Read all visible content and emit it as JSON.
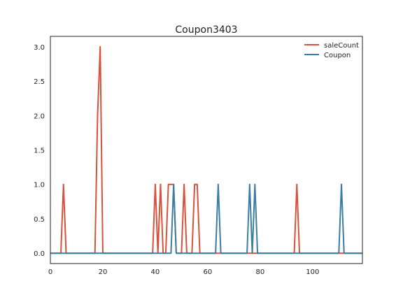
{
  "chart_data": {
    "type": "line",
    "title": "Coupon3403",
    "xlabel": "",
    "ylabel": "",
    "xlim": [
      0,
      119
    ],
    "ylim": [
      -0.15,
      3.15
    ],
    "xticks": [
      0,
      20,
      40,
      60,
      80,
      100
    ],
    "yticks": [
      0.0,
      0.5,
      1.0,
      1.5,
      2.0,
      2.5,
      3.0
    ],
    "grid": false,
    "legend_position": "top-right",
    "series": [
      {
        "name": "saleCount",
        "color": "#d9513a",
        "points": [
          [
            0,
            0
          ],
          [
            4,
            0
          ],
          [
            5,
            1
          ],
          [
            6,
            0
          ],
          [
            17,
            0
          ],
          [
            18,
            2
          ],
          [
            19,
            3
          ],
          [
            20,
            0
          ],
          [
            39,
            0
          ],
          [
            40,
            1
          ],
          [
            41,
            0
          ],
          [
            42,
            1
          ],
          [
            43,
            0
          ],
          [
            44,
            0
          ],
          [
            45,
            1
          ],
          [
            47,
            1
          ],
          [
            48,
            0
          ],
          [
            50,
            0
          ],
          [
            51,
            1
          ],
          [
            52,
            0
          ],
          [
            54,
            0
          ],
          [
            55,
            1
          ],
          [
            56,
            1
          ],
          [
            57,
            0
          ],
          [
            93,
            0
          ],
          [
            94,
            1
          ],
          [
            95,
            0
          ],
          [
            119,
            0
          ]
        ]
      },
      {
        "name": "Coupon",
        "color": "#3b7ea1",
        "points": [
          [
            0,
            0
          ],
          [
            46,
            0
          ],
          [
            47,
            1
          ],
          [
            48,
            0
          ],
          [
            63,
            0
          ],
          [
            64,
            1
          ],
          [
            65,
            0
          ],
          [
            75,
            0
          ],
          [
            76,
            1
          ],
          [
            77,
            0
          ],
          [
            78,
            1
          ],
          [
            79,
            0
          ],
          [
            110,
            0
          ],
          [
            111,
            1
          ],
          [
            112,
            0
          ],
          [
            119,
            0
          ]
        ]
      }
    ]
  }
}
